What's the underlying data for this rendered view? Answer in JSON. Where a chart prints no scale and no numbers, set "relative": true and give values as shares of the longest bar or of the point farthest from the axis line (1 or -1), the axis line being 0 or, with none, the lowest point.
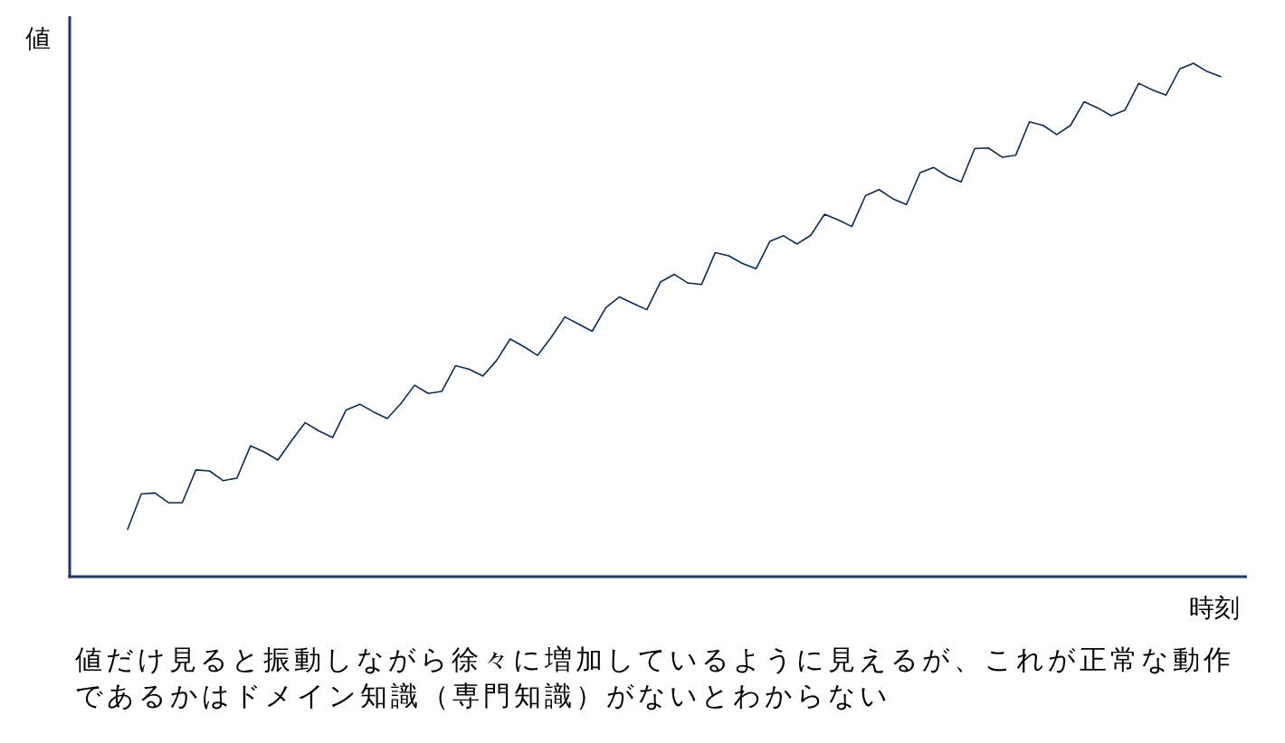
{
  "chart_data": {
    "type": "line",
    "relative": true,
    "xlabel": "時刻",
    "ylabel": "値",
    "annotations": [
      "値だけ見ると振動しながら徐々に増加しているように見えるが、これが正常な動作であるかはドメイン知識（専門知識）がないとわからない"
    ],
    "categories": [
      null,
      null,
      null,
      null,
      null,
      null,
      null,
      null,
      null,
      null,
      null,
      null,
      null,
      null,
      null,
      null,
      null,
      null,
      null,
      null,
      null,
      null,
      null,
      null,
      null,
      null,
      null,
      null,
      null,
      null,
      null,
      null,
      null,
      null,
      null,
      null,
      null,
      null,
      null,
      null,
      null,
      null,
      null,
      null,
      null,
      null,
      null,
      null,
      null,
      null,
      null,
      null,
      null,
      null,
      null,
      null,
      null,
      null,
      null,
      null,
      null,
      null,
      null,
      null,
      null,
      null,
      null,
      null,
      null,
      null,
      null,
      null,
      null,
      null,
      null,
      null,
      null,
      null,
      null,
      null,
      null
    ],
    "series": [
      {
        "color": "#0b2d52",
        "values": [
          0.092,
          0.161,
          0.163,
          0.144,
          0.144,
          0.208,
          0.206,
          0.187,
          0.192,
          0.255,
          0.243,
          0.227,
          0.265,
          0.3,
          0.284,
          0.271,
          0.325,
          0.336,
          0.321,
          0.308,
          0.337,
          0.373,
          0.357,
          0.361,
          0.411,
          0.404,
          0.391,
          0.421,
          0.463,
          0.448,
          0.431,
          0.466,
          0.506,
          0.492,
          0.478,
          0.524,
          0.545,
          0.532,
          0.52,
          0.574,
          0.589,
          0.572,
          0.569,
          0.631,
          0.625,
          0.61,
          0.6,
          0.653,
          0.664,
          0.648,
          0.665,
          0.706,
          0.695,
          0.682,
          0.742,
          0.754,
          0.736,
          0.725,
          0.787,
          0.797,
          0.78,
          0.769,
          0.834,
          0.835,
          0.817,
          0.821,
          0.886,
          0.879,
          0.861,
          0.879,
          0.925,
          0.913,
          0.898,
          0.909,
          0.961,
          0.948,
          0.938,
          0.989,
          1.0,
          0.984,
          0.974
        ]
      }
    ]
  }
}
